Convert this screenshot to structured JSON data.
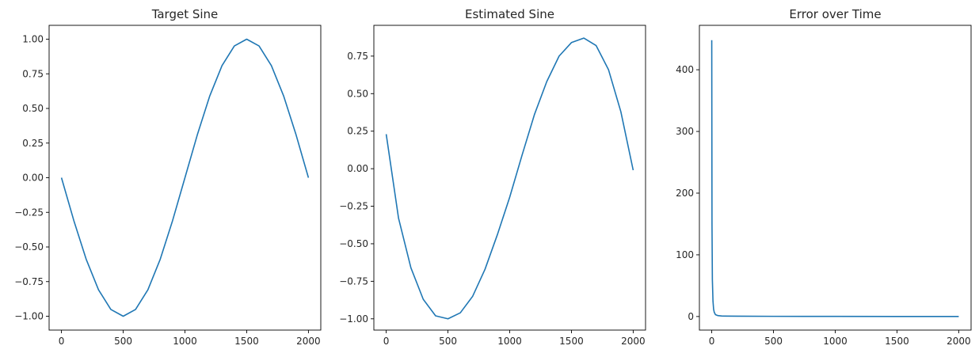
{
  "chart_data": [
    {
      "type": "line",
      "title": "Target Sine",
      "xlabel": "",
      "ylabel": "",
      "xlim": [
        -100,
        2100
      ],
      "ylim": [
        -1.1,
        1.1
      ],
      "xticks": [
        0,
        500,
        1000,
        1500,
        2000
      ],
      "xtick_labels": [
        "0",
        "500",
        "1000",
        "1500",
        "2000"
      ],
      "yticks": [
        -1.0,
        -0.75,
        -0.5,
        -0.25,
        0.0,
        0.25,
        0.5,
        0.75,
        1.0
      ],
      "ytick_labels": [
        "−1.00",
        "−0.75",
        "−0.50",
        "−0.25",
        "0.00",
        "0.25",
        "0.50",
        "0.75",
        "1.00"
      ],
      "grid": false,
      "series": [
        {
          "color": "#1f77b4",
          "x": [
            0,
            100,
            200,
            300,
            400,
            500,
            600,
            700,
            800,
            900,
            1000,
            1100,
            1200,
            1300,
            1400,
            1500,
            1600,
            1700,
            1800,
            1900,
            2000
          ],
          "y": [
            0.0,
            -0.309,
            -0.588,
            -0.809,
            -0.951,
            -1.0,
            -0.951,
            -0.809,
            -0.588,
            -0.309,
            0.0,
            0.309,
            0.588,
            0.809,
            0.951,
            1.0,
            0.951,
            0.809,
            0.588,
            0.309,
            0.0
          ]
        }
      ]
    },
    {
      "type": "line",
      "title": "Estimated Sine",
      "xlabel": "",
      "ylabel": "",
      "xlim": [
        -100,
        2100
      ],
      "ylim": [
        -1.075,
        0.955
      ],
      "xticks": [
        0,
        500,
        1000,
        1500,
        2000
      ],
      "xtick_labels": [
        "0",
        "500",
        "1000",
        "1500",
        "2000"
      ],
      "yticks": [
        -1.0,
        -0.75,
        -0.5,
        -0.25,
        0.0,
        0.25,
        0.5,
        0.75
      ],
      "ytick_labels": [
        "−1.00",
        "−0.75",
        "−0.50",
        "−0.25",
        "0.00",
        "0.25",
        "0.50",
        "0.75"
      ],
      "grid": false,
      "series": [
        {
          "color": "#1f77b4",
          "x": [
            0,
            100,
            200,
            300,
            400,
            500,
            600,
            700,
            800,
            900,
            1000,
            1100,
            1200,
            1300,
            1400,
            1500,
            1600,
            1700,
            1800,
            1900,
            2000
          ],
          "y": [
            0.23,
            -0.33,
            -0.66,
            -0.87,
            -0.98,
            -1.0,
            -0.96,
            -0.85,
            -0.67,
            -0.44,
            -0.19,
            0.09,
            0.36,
            0.58,
            0.75,
            0.84,
            0.87,
            0.82,
            0.66,
            0.38,
            -0.01
          ]
        }
      ]
    },
    {
      "type": "line",
      "title": "Error over Time",
      "xlabel": "",
      "ylabel": "",
      "xlim": [
        -100,
        2100
      ],
      "ylim": [
        -22,
        472
      ],
      "xticks": [
        0,
        500,
        1000,
        1500,
        2000
      ],
      "xtick_labels": [
        "0",
        "500",
        "1000",
        "1500",
        "2000"
      ],
      "yticks": [
        0,
        100,
        200,
        300,
        400
      ],
      "ytick_labels": [
        "0",
        "100",
        "200",
        "300",
        "400"
      ],
      "grid": false,
      "series": [
        {
          "color": "#1f77b4",
          "x": [
            0,
            2,
            5,
            10,
            15,
            20,
            30,
            50,
            80,
            100,
            200,
            500,
            1000,
            1500,
            2000
          ],
          "y": [
            448,
            150,
            60,
            25,
            12,
            7,
            3,
            1.5,
            0.8,
            0.7,
            0.5,
            0.3,
            0.2,
            0.1,
            0.1
          ]
        }
      ]
    }
  ]
}
